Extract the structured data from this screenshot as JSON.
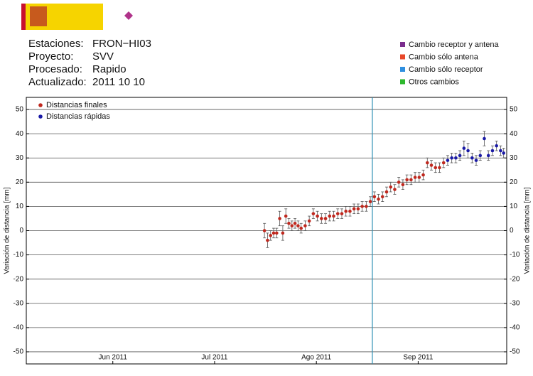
{
  "header": {
    "fields": [
      {
        "label": "Estaciones:",
        "value": "FRON−HI03"
      },
      {
        "label": "Proyecto:",
        "value": "SVV"
      },
      {
        "label": "Procesado:",
        "value": "Rapido"
      },
      {
        "label": "Actualizado:",
        "value": "2011 10 10"
      }
    ],
    "change_legend": [
      {
        "name": "Cambio receptor y antena",
        "color": "#7b2d8e"
      },
      {
        "name": "Cambio sólo antena",
        "color": "#e8472a"
      },
      {
        "name": "Cambio sólo receptor",
        "color": "#2f8fe0"
      },
      {
        "name": "Otros cambios",
        "color": "#2db82d"
      }
    ]
  },
  "chart_data": {
    "type": "scatter",
    "y_label": "Variación de distancia [mm]",
    "xlim": [
      5.15,
      9.87
    ],
    "xticks": [
      {
        "value": 6,
        "label": "Jun 2011"
      },
      {
        "value": 7,
        "label": "Jul 2011"
      },
      {
        "value": 8,
        "label": "Ago 2011"
      },
      {
        "value": 9,
        "label": "Sep 2011"
      }
    ],
    "ylim": [
      -55,
      55
    ],
    "yticks": [
      -50,
      -40,
      -30,
      -20,
      -10,
      0,
      10,
      20,
      30,
      40,
      50
    ],
    "grid": true,
    "legend": "upper left",
    "vline": {
      "x": 8.55,
      "color": "#2f8fb5"
    },
    "series": [
      {
        "name": "Distancias finales",
        "color": "#c0281e",
        "x": [
          7.49,
          7.52,
          7.55,
          7.58,
          7.61,
          7.64,
          7.67,
          7.7,
          7.73,
          7.76,
          7.79,
          7.82,
          7.85,
          7.89,
          7.93,
          7.97,
          8.01,
          8.05,
          8.09,
          8.13,
          8.17,
          8.21,
          8.25,
          8.29,
          8.33,
          8.37,
          8.41,
          8.45,
          8.49,
          8.53,
          8.57,
          8.61,
          8.65,
          8.69,
          8.73,
          8.77,
          8.81,
          8.85,
          8.89,
          8.93,
          8.97,
          9.01,
          9.05,
          9.09,
          9.13,
          9.17,
          9.21,
          9.25
        ],
        "values": [
          0,
          -4,
          -2,
          -1,
          -1,
          5,
          -1,
          6,
          3,
          2,
          3,
          2,
          1,
          2,
          4,
          7,
          6,
          5,
          5,
          6,
          6,
          7,
          7,
          8,
          8,
          9,
          9,
          10,
          10,
          12,
          14,
          13,
          14,
          16,
          18,
          17,
          20,
          19,
          21,
          21,
          22,
          22,
          23,
          28,
          27,
          26,
          26,
          28
        ],
        "errors": [
          3,
          3,
          2,
          2,
          2,
          3,
          3,
          3,
          2,
          2,
          2,
          2,
          2,
          2,
          2,
          2,
          2,
          2,
          2,
          2,
          2,
          2,
          2,
          2,
          2,
          2,
          2,
          2,
          2,
          2,
          2,
          2,
          2,
          2,
          2,
          2,
          2,
          2,
          2,
          2,
          2,
          2,
          2,
          2,
          2,
          2,
          2,
          2
        ]
      },
      {
        "name": "Distancias rápidas",
        "color": "#1a1aa6",
        "x": [
          9.29,
          9.33,
          9.37,
          9.41,
          9.45,
          9.49,
          9.53,
          9.57,
          9.61,
          9.65,
          9.69,
          9.73,
          9.77,
          9.81,
          9.84
        ],
        "values": [
          29,
          30,
          30,
          31,
          34,
          33,
          30,
          29,
          31,
          38,
          31,
          33,
          35,
          33,
          32
        ],
        "errors": [
          2,
          2,
          2,
          2,
          3,
          3,
          2,
          2,
          2,
          3,
          2,
          2,
          2,
          2,
          2
        ]
      }
    ]
  }
}
